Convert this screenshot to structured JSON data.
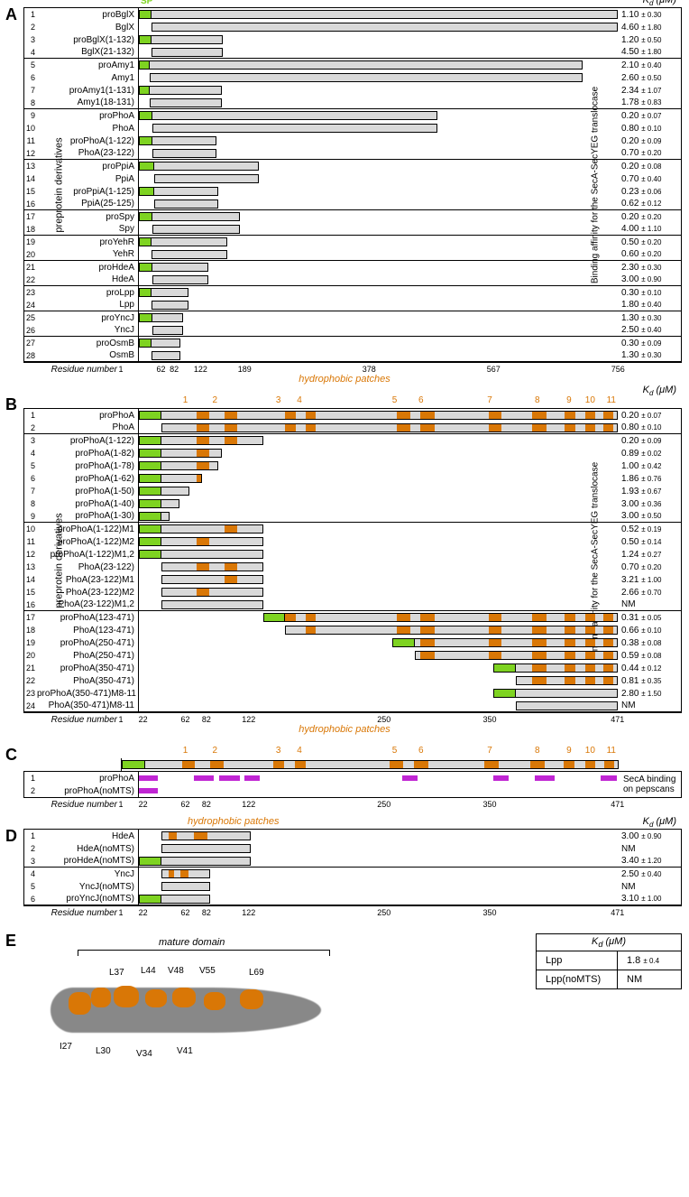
{
  "colors": {
    "sp": "#7ed321",
    "bar": "#d9d9d9",
    "patch": "#d97706",
    "magenta": "#c026d3",
    "border": "#000000"
  },
  "sp_label": "SP",
  "kd_header": "Kd (μM)",
  "patches_header": "hydrophobic patches",
  "panelA": {
    "label": "A",
    "y_label": "preprotein derivatives",
    "right_label": "Binding affinity for the SecA-SecYEG translocase",
    "x_label": "Residue number",
    "x_ticks": [
      1,
      62,
      82,
      122,
      189,
      378,
      567,
      756
    ],
    "max": 756,
    "groups": [
      [
        {
          "n": 1,
          "name": "proBglX",
          "start": 1,
          "end": 756,
          "sp": 20,
          "kd": "1.10",
          "err": "0.30"
        },
        {
          "n": 2,
          "name": "BglX",
          "start": 21,
          "end": 756,
          "kd": "4.60",
          "err": "1.80"
        },
        {
          "n": 3,
          "name": "proBglX(1-132)",
          "start": 1,
          "end": 132,
          "sp": 20,
          "kd": "1.20",
          "err": "0.50"
        },
        {
          "n": 4,
          "name": "BglX(21-132)",
          "start": 21,
          "end": 132,
          "kd": "4.50",
          "err": "1.80"
        }
      ],
      [
        {
          "n": 5,
          "name": "proAmy1",
          "start": 1,
          "end": 700,
          "sp": 17,
          "kd": "2.10",
          "err": "0.40"
        },
        {
          "n": 6,
          "name": "Amy1",
          "start": 18,
          "end": 700,
          "kd": "2.60",
          "err": "0.50"
        },
        {
          "n": 7,
          "name": "proAmy1(1-131)",
          "start": 1,
          "end": 131,
          "sp": 17,
          "kd": "2.34",
          "err": "1.07"
        },
        {
          "n": 8,
          "name": "Amy1(18-131)",
          "start": 18,
          "end": 131,
          "kd": "1.78",
          "err": "0.83"
        }
      ],
      [
        {
          "n": 9,
          "name": "proPhoA",
          "start": 1,
          "end": 471,
          "sp": 22,
          "kd": "0.20",
          "err": "0.07"
        },
        {
          "n": 10,
          "name": "PhoA",
          "start": 23,
          "end": 471,
          "kd": "0.80",
          "err": "0.10"
        },
        {
          "n": 11,
          "name": "proPhoA(1-122)",
          "start": 1,
          "end": 122,
          "sp": 22,
          "kd": "0.20",
          "err": "0.09"
        },
        {
          "n": 12,
          "name": "PhoA(23-122)",
          "start": 23,
          "end": 122,
          "kd": "0.70",
          "err": "0.20"
        }
      ],
      [
        {
          "n": 13,
          "name": "proPpiA",
          "start": 1,
          "end": 189,
          "sp": 24,
          "kd": "0.20",
          "err": "0.08"
        },
        {
          "n": 14,
          "name": "PpiA",
          "start": 25,
          "end": 189,
          "kd": "0.70",
          "err": "0.40"
        },
        {
          "n": 15,
          "name": "proPpiA(1-125)",
          "start": 1,
          "end": 125,
          "sp": 24,
          "kd": "0.23",
          "err": "0.06"
        },
        {
          "n": 16,
          "name": "PpiA(25-125)",
          "start": 25,
          "end": 125,
          "kd": "0.62",
          "err": "0.12"
        }
      ],
      [
        {
          "n": 17,
          "name": "proSpy",
          "start": 1,
          "end": 160,
          "sp": 22,
          "kd": "0.20",
          "err": "0.20"
        },
        {
          "n": 18,
          "name": "Spy",
          "start": 23,
          "end": 160,
          "kd": "4.00",
          "err": "1.10"
        }
      ],
      [
        {
          "n": 19,
          "name": "proYehR",
          "start": 1,
          "end": 140,
          "sp": 20,
          "kd": "0.50",
          "err": "0.20"
        },
        {
          "n": 20,
          "name": "YehR",
          "start": 21,
          "end": 140,
          "kd": "0.60",
          "err": "0.20"
        }
      ],
      [
        {
          "n": 21,
          "name": "proHdeA",
          "start": 1,
          "end": 110,
          "sp": 22,
          "kd": "2.30",
          "err": "0.30"
        },
        {
          "n": 22,
          "name": "HdeA",
          "start": 23,
          "end": 110,
          "kd": "3.00",
          "err": "0.90"
        }
      ],
      [
        {
          "n": 23,
          "name": "proLpp",
          "start": 1,
          "end": 78,
          "sp": 20,
          "kd": "0.30",
          "err": "0.10"
        },
        {
          "n": 24,
          "name": "Lpp",
          "start": 21,
          "end": 78,
          "kd": "1.80",
          "err": "0.40"
        }
      ],
      [
        {
          "n": 25,
          "name": "proYncJ",
          "start": 1,
          "end": 70,
          "sp": 22,
          "kd": "1.30",
          "err": "0.30"
        },
        {
          "n": 26,
          "name": "YncJ",
          "start": 23,
          "end": 70,
          "kd": "2.50",
          "err": "0.40"
        }
      ],
      [
        {
          "n": 27,
          "name": "proOsmB",
          "start": 1,
          "end": 65,
          "sp": 20,
          "kd": "0.30",
          "err": "0.09"
        },
        {
          "n": 28,
          "name": "OsmB",
          "start": 21,
          "end": 65,
          "kd": "1.30",
          "err": "0.30"
        }
      ]
    ]
  },
  "panelB": {
    "label": "B",
    "y_label": "preprotein derivatives",
    "right_label": "Binding affinity for the SecA-SecYEG translocase",
    "x_label": "Residue number",
    "x_ticks": [
      1,
      22,
      62,
      82,
      122,
      250,
      350,
      471
    ],
    "max": 471,
    "patch_nums": [
      1,
      2,
      3,
      4,
      5,
      6,
      7,
      8,
      9,
      10,
      11
    ],
    "patch_pos": [
      62,
      90,
      150,
      170,
      260,
      285,
      350,
      395,
      425,
      445,
      465
    ],
    "groups": [
      [
        {
          "n": 1,
          "name": "proPhoA",
          "start": 1,
          "end": 471,
          "sp": 22,
          "patches": [
            [
              58,
              70
            ],
            [
              85,
              98
            ],
            [
              145,
              155
            ],
            [
              165,
              175
            ],
            [
              255,
              268
            ],
            [
              278,
              292
            ],
            [
              345,
              358
            ],
            [
              388,
              402
            ],
            [
              420,
              430
            ],
            [
              440,
              450
            ],
            [
              458,
              468
            ]
          ],
          "kd": "0.20",
          "err": "0.07"
        },
        {
          "n": 2,
          "name": "PhoA",
          "start": 23,
          "end": 471,
          "patches": [
            [
              58,
              70
            ],
            [
              85,
              98
            ],
            [
              145,
              155
            ],
            [
              165,
              175
            ],
            [
              255,
              268
            ],
            [
              278,
              292
            ],
            [
              345,
              358
            ],
            [
              388,
              402
            ],
            [
              420,
              430
            ],
            [
              440,
              450
            ],
            [
              458,
              468
            ]
          ],
          "kd": "0.80",
          "err": "0.10"
        }
      ],
      [
        {
          "n": 3,
          "name": "proPhoA(1-122)",
          "start": 1,
          "end": 122,
          "sp": 22,
          "patches": [
            [
              58,
              70
            ],
            [
              85,
              98
            ]
          ],
          "kd": "0.20",
          "err": "0.09"
        },
        {
          "n": 4,
          "name": "proPhoA(1-82)",
          "start": 1,
          "end": 82,
          "sp": 22,
          "patches": [
            [
              58,
              70
            ]
          ],
          "kd": "0.89",
          "err": "0.02"
        },
        {
          "n": 5,
          "name": "proPhoA(1-78)",
          "start": 1,
          "end": 78,
          "sp": 22,
          "patches": [
            [
              58,
              70
            ]
          ],
          "kd": "1.00",
          "err": "0.42"
        },
        {
          "n": 6,
          "name": "proPhoA(1-62)",
          "start": 1,
          "end": 62,
          "sp": 22,
          "patches": [
            [
              58,
              62
            ]
          ],
          "kd": "1.86",
          "err": "0.76"
        },
        {
          "n": 7,
          "name": "proPhoA(1-50)",
          "start": 1,
          "end": 50,
          "sp": 22,
          "kd": "1.93",
          "err": "0.67"
        },
        {
          "n": 8,
          "name": "proPhoA(1-40)",
          "start": 1,
          "end": 40,
          "sp": 22,
          "kd": "3.00",
          "err": "0.36"
        },
        {
          "n": 9,
          "name": "proPhoA(1-30)",
          "start": 1,
          "end": 30,
          "sp": 22,
          "kd": "3.00",
          "err": "0.50"
        }
      ],
      [
        {
          "n": 10,
          "name": "proPhoA(1-122)M1",
          "start": 1,
          "end": 122,
          "sp": 22,
          "patches": [
            [
              85,
              98
            ]
          ],
          "kd": "0.52",
          "err": "0.19"
        },
        {
          "n": 11,
          "name": "proPhoA(1-122)M2",
          "start": 1,
          "end": 122,
          "sp": 22,
          "patches": [
            [
              58,
              70
            ]
          ],
          "kd": "0.50",
          "err": "0.14"
        },
        {
          "n": 12,
          "name": "proPhoA(1-122)M1,2",
          "start": 1,
          "end": 122,
          "sp": 22,
          "kd": "1.24",
          "err": "0.27"
        },
        {
          "n": 13,
          "name": "PhoA(23-122)",
          "start": 23,
          "end": 122,
          "patches": [
            [
              58,
              70
            ],
            [
              85,
              98
            ]
          ],
          "kd": "0.70",
          "err": "0.20"
        },
        {
          "n": 14,
          "name": "PhoA(23-122)M1",
          "start": 23,
          "end": 122,
          "patches": [
            [
              85,
              98
            ]
          ],
          "kd": "3.21",
          "err": "1.00"
        },
        {
          "n": 15,
          "name": "PhoA(23-122)M2",
          "start": 23,
          "end": 122,
          "patches": [
            [
              58,
              70
            ]
          ],
          "kd": "2.66",
          "err": "0.70"
        },
        {
          "n": 16,
          "name": "PhoA(23-122)M1,2",
          "start": 23,
          "end": 122,
          "kd": "NM",
          "err": ""
        }
      ],
      [
        {
          "n": 17,
          "name": "proPhoA(123-471)",
          "start": 123,
          "end": 471,
          "sp_at": 123,
          "sp": 22,
          "patches": [
            [
              145,
              155
            ],
            [
              165,
              175
            ],
            [
              255,
              268
            ],
            [
              278,
              292
            ],
            [
              345,
              358
            ],
            [
              388,
              402
            ],
            [
              420,
              430
            ],
            [
              440,
              450
            ],
            [
              458,
              468
            ]
          ],
          "kd": "0.31",
          "err": "0.05"
        },
        {
          "n": 18,
          "name": "PhoA(123-471)",
          "start": 145,
          "end": 471,
          "patches": [
            [
              165,
              175
            ],
            [
              255,
              268
            ],
            [
              278,
              292
            ],
            [
              345,
              358
            ],
            [
              388,
              402
            ],
            [
              420,
              430
            ],
            [
              440,
              450
            ],
            [
              458,
              468
            ]
          ],
          "kd": "0.66",
          "err": "0.10"
        },
        {
          "n": 19,
          "name": "proPhoA(250-471)",
          "start": 250,
          "end": 471,
          "sp_at": 250,
          "sp": 22,
          "patches": [
            [
              278,
              292
            ],
            [
              345,
              358
            ],
            [
              388,
              402
            ],
            [
              420,
              430
            ],
            [
              440,
              450
            ],
            [
              458,
              468
            ]
          ],
          "kd": "0.38",
          "err": "0.08"
        },
        {
          "n": 20,
          "name": "PhoA(250-471)",
          "start": 272,
          "end": 471,
          "patches": [
            [
              278,
              292
            ],
            [
              345,
              358
            ],
            [
              388,
              402
            ],
            [
              420,
              430
            ],
            [
              440,
              450
            ],
            [
              458,
              468
            ]
          ],
          "kd": "0.59",
          "err": "0.08"
        },
        {
          "n": 21,
          "name": "proPhoA(350-471)",
          "start": 350,
          "end": 471,
          "sp_at": 350,
          "sp": 22,
          "patches": [
            [
              388,
              402
            ],
            [
              420,
              430
            ],
            [
              440,
              450
            ],
            [
              458,
              468
            ]
          ],
          "kd": "0.44",
          "err": "0.12"
        },
        {
          "n": 22,
          "name": "PhoA(350-471)",
          "start": 372,
          "end": 471,
          "patches": [
            [
              388,
              402
            ],
            [
              420,
              430
            ],
            [
              440,
              450
            ],
            [
              458,
              468
            ]
          ],
          "kd": "0.81",
          "err": "0.35"
        },
        {
          "n": 23,
          "name": "proPhoA(350-471)M8-11",
          "start": 350,
          "end": 471,
          "sp_at": 350,
          "sp": 22,
          "kd": "2.80",
          "err": "1.50"
        },
        {
          "n": 24,
          "name": "PhoA(350-471)M8-11",
          "start": 372,
          "end": 471,
          "kd": "NM",
          "err": ""
        }
      ]
    ]
  },
  "panelC": {
    "label": "C",
    "x_label": "Residue number",
    "x_ticks": [
      1,
      22,
      62,
      82,
      122,
      250,
      350,
      471
    ],
    "max": 471,
    "right_label": "SecA binding on pepscans",
    "ref_bar": {
      "start": 1,
      "end": 471,
      "sp": 22,
      "patches": [
        [
          58,
          70
        ],
        [
          85,
          98
        ],
        [
          145,
          155
        ],
        [
          165,
          175
        ],
        [
          255,
          268
        ],
        [
          278,
          292
        ],
        [
          345,
          358
        ],
        [
          388,
          402
        ],
        [
          420,
          430
        ],
        [
          440,
          450
        ],
        [
          458,
          468
        ]
      ]
    },
    "rows": [
      {
        "n": 1,
        "name": "proPhoA",
        "segs": [
          [
            1,
            20
          ],
          [
            55,
            75
          ],
          [
            80,
            100
          ],
          [
            105,
            120
          ],
          [
            260,
            275
          ],
          [
            350,
            365
          ],
          [
            390,
            410
          ],
          [
            455,
            471
          ]
        ]
      },
      {
        "n": 2,
        "name": "proPhoA(noMTS)",
        "segs": [
          [
            1,
            20
          ]
        ]
      }
    ]
  },
  "panelD": {
    "label": "D",
    "x_label": "Residue number",
    "x_ticks": [
      1,
      22,
      62,
      82,
      122,
      250,
      350,
      471
    ],
    "max": 471,
    "groups": [
      [
        {
          "n": 1,
          "name": "HdeA",
          "start": 23,
          "end": 110,
          "patches": [
            [
              30,
              38
            ],
            [
              55,
              68
            ]
          ],
          "kd": "3.00",
          "err": "0.90"
        },
        {
          "n": 2,
          "name": "HdeA(noMTS)",
          "start": 23,
          "end": 110,
          "kd": "NM",
          "err": ""
        },
        {
          "n": 3,
          "name": "proHdeA(noMTS)",
          "start": 1,
          "end": 110,
          "sp": 22,
          "kd": "3.40",
          "err": "1.20"
        }
      ],
      [
        {
          "n": 4,
          "name": "YncJ",
          "start": 23,
          "end": 70,
          "patches": [
            [
              30,
              36
            ],
            [
              42,
              50
            ]
          ],
          "kd": "2.50",
          "err": "0.40"
        },
        {
          "n": 5,
          "name": "YncJ(noMTS)",
          "start": 23,
          "end": 70,
          "kd": "NM",
          "err": ""
        },
        {
          "n": 6,
          "name": "proYncJ(noMTS)",
          "start": 1,
          "end": 70,
          "sp": 22,
          "kd": "3.10",
          "err": "1.00"
        }
      ]
    ]
  },
  "panelE": {
    "label": "E",
    "mature_label": "mature domain",
    "residues": [
      "L37",
      "L44",
      "V48",
      "V55",
      "L69",
      "I27",
      "L30",
      "V34",
      "V41"
    ],
    "table": [
      {
        "name": "Lpp",
        "kd": "1.8",
        "err": "0.4"
      },
      {
        "name": "Lpp(noMTS)",
        "kd": "NM",
        "err": ""
      }
    ]
  }
}
